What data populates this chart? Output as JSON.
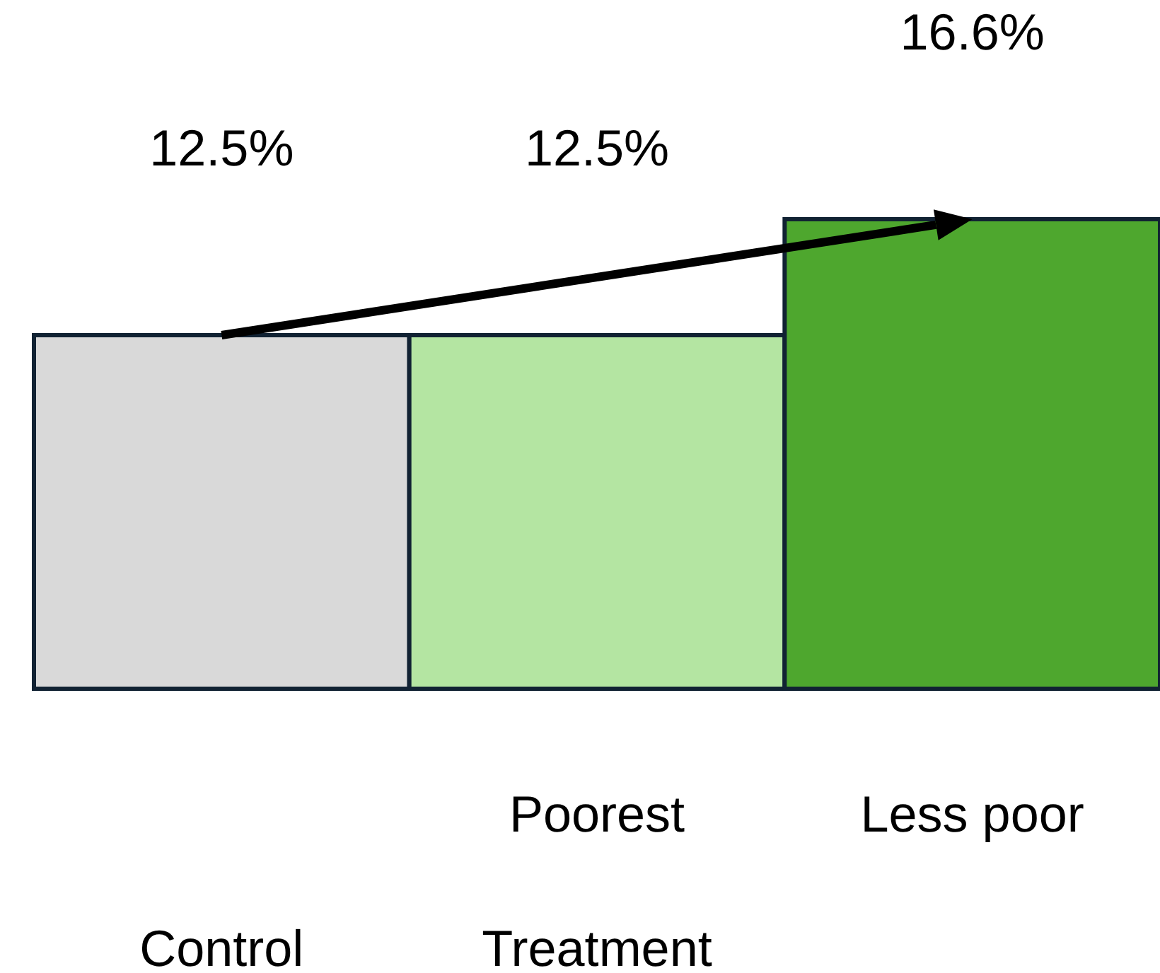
{
  "chart_data": {
    "type": "bar",
    "categories": [
      null,
      "Poorest",
      "Less poor"
    ],
    "values": [
      12.5,
      12.5,
      16.6
    ],
    "value_labels": [
      "12.5%",
      "12.5%",
      "16.6%"
    ],
    "colors": [
      "#d9d9d9",
      "#b4e5a2",
      "#4ea72e"
    ],
    "annotations": [
      "Control",
      "Treatment"
    ]
  }
}
